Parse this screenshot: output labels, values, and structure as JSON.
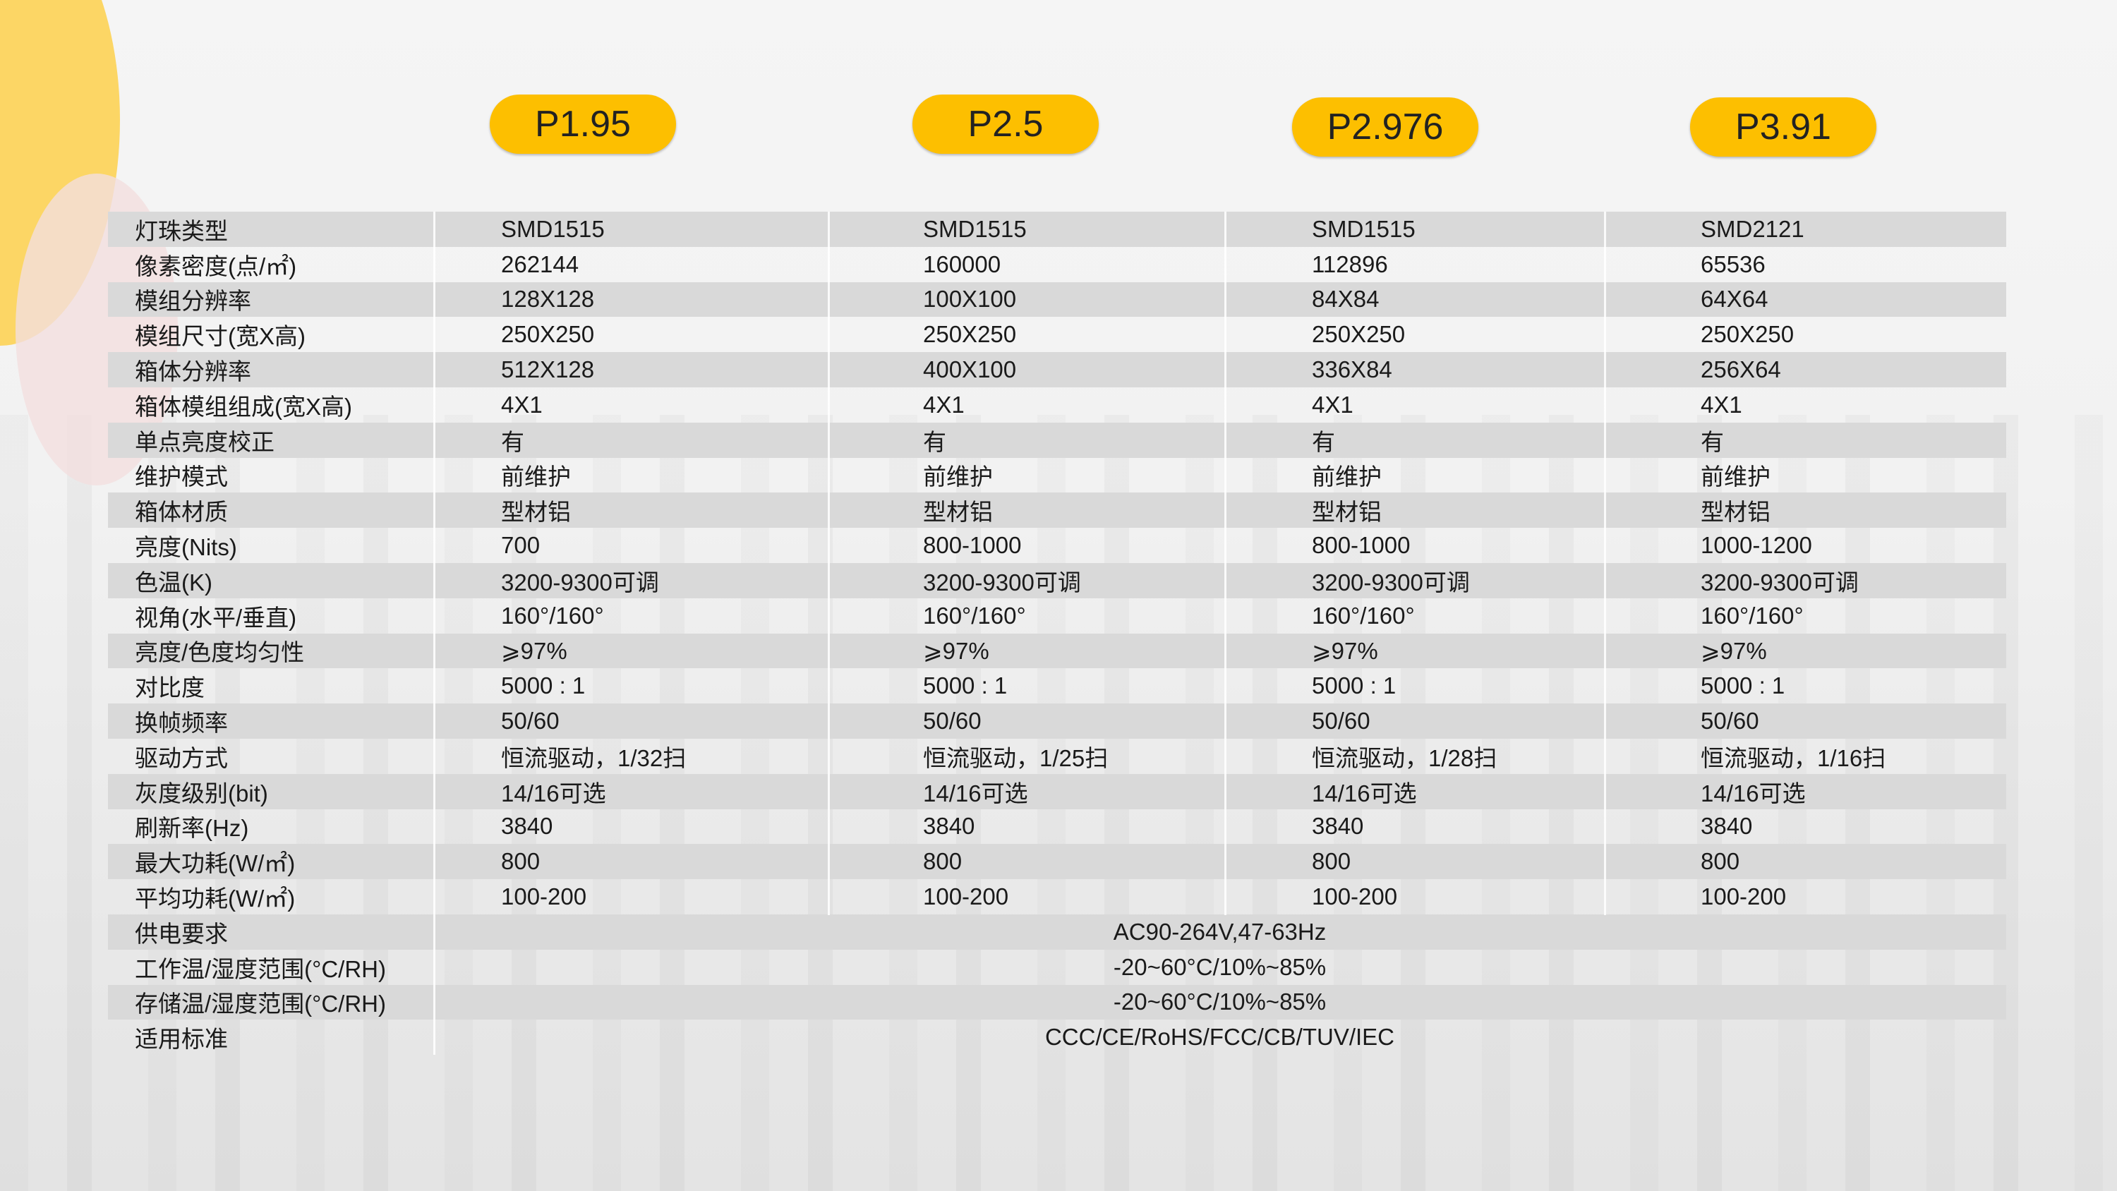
{
  "colors": {
    "accent": "#fdbf00",
    "row_stripe": "#d9d9d9",
    "circle_yellow": "#fcd665",
    "circle_pink": "#f3dede"
  },
  "models": [
    "P1.95",
    "P2.5",
    "P2.976",
    "P3.91"
  ],
  "rows": [
    {
      "label": "灯珠类型",
      "values": [
        "SMD1515",
        "SMD1515",
        "SMD1515",
        "SMD2121"
      ]
    },
    {
      "label": "像素密度(点/㎡)",
      "values": [
        "262144",
        "160000",
        "112896",
        "65536"
      ]
    },
    {
      "label": "模组分辨率",
      "values": [
        "128X128",
        "100X100",
        "84X84",
        "64X64"
      ]
    },
    {
      "label": "模组尺寸(宽X高)",
      "values": [
        "250X250",
        "250X250",
        "250X250",
        "250X250"
      ]
    },
    {
      "label": "箱体分辨率",
      "values": [
        "512X128",
        "400X100",
        "336X84",
        "256X64"
      ]
    },
    {
      "label": "箱体模组组成(宽X高)",
      "values": [
        "4X1",
        "4X1",
        "4X1",
        "4X1"
      ]
    },
    {
      "label": "单点亮度校正",
      "values": [
        "有",
        "有",
        "有",
        "有"
      ]
    },
    {
      "label": "维护模式",
      "values": [
        "前维护",
        "前维护",
        "前维护",
        "前维护"
      ]
    },
    {
      "label": "箱体材质",
      "values": [
        "型材铝",
        "型材铝",
        "型材铝",
        "型材铝"
      ]
    },
    {
      "label": "亮度(Nits)",
      "values": [
        "700",
        "800-1000",
        "800-1000",
        "1000-1200"
      ]
    },
    {
      "label": "色温(K)",
      "values": [
        "3200-9300可调",
        "3200-9300可调",
        "3200-9300可调",
        "3200-9300可调"
      ]
    },
    {
      "label": "视角(水平/垂直)",
      "values": [
        "160°/160°",
        "160°/160°",
        "160°/160°",
        "160°/160°"
      ]
    },
    {
      "label": "亮度/色度均匀性",
      "values": [
        "⩾97%",
        "⩾97%",
        "⩾97%",
        "⩾97%"
      ]
    },
    {
      "label": "对比度",
      "values": [
        "5000 : 1",
        "5000 : 1",
        "5000 : 1",
        "5000 : 1"
      ]
    },
    {
      "label": "换帧频率",
      "values": [
        "50/60",
        "50/60",
        "50/60",
        "50/60"
      ]
    },
    {
      "label": "驱动方式",
      "values": [
        "恒流驱动，1/32扫",
        "恒流驱动，1/25扫",
        "恒流驱动，1/28扫",
        "恒流驱动，1/16扫"
      ]
    },
    {
      "label": "灰度级别(bit)",
      "values": [
        "14/16可选",
        "14/16可选",
        "14/16可选",
        "14/16可选"
      ]
    },
    {
      "label": "刷新率(Hz)",
      "values": [
        "3840",
        "3840",
        "3840",
        "3840"
      ]
    },
    {
      "label": "最大功耗(W/㎡)",
      "values": [
        "800",
        "800",
        "800",
        "800"
      ]
    },
    {
      "label": "平均功耗(W/㎡)",
      "values": [
        "100-200",
        "100-200",
        "100-200",
        "100-200"
      ]
    },
    {
      "label": "供电要求",
      "merged": "AC90-264V,47-63Hz"
    },
    {
      "label": "工作温/湿度范围(°C/RH)",
      "merged": "-20~60°C/10%~85%"
    },
    {
      "label": "存储温/湿度范围(°C/RH)",
      "merged": "-20~60°C/10%~85%"
    },
    {
      "label": "适用标准",
      "merged": "CCC/CE/RoHS/FCC/CB/TUV/IEC"
    }
  ]
}
